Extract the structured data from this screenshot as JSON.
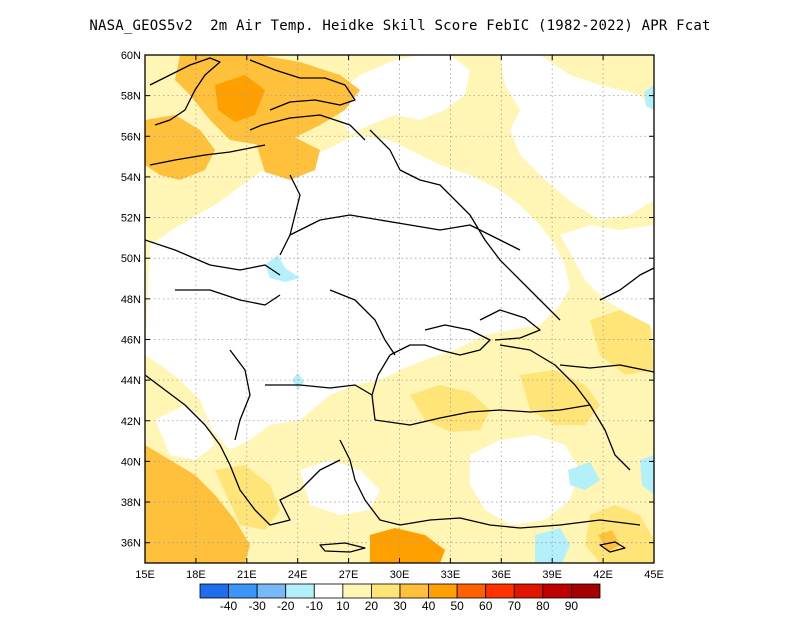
{
  "title": "NASA_GEOS5v2  2m Air Temp. Heidke Skill Score FebIC (1982-2022) APR Fcat",
  "map": {
    "region": "Eastern Europe / Black Sea",
    "lon_range": [
      15,
      45
    ],
    "lat_range": [
      35,
      60
    ],
    "lon_ticks": [
      "15E",
      "18E",
      "21E",
      "24E",
      "27E",
      "30E",
      "33E",
      "36E",
      "39E",
      "42E",
      "45E"
    ],
    "lat_ticks": [
      "36N",
      "38N",
      "40N",
      "42N",
      "44N",
      "46N",
      "48N",
      "50N",
      "52N",
      "54N",
      "56N",
      "58N",
      "60N"
    ],
    "gridlines": true,
    "gridline_style": "dotted"
  },
  "colorbar": {
    "colors": [
      "#1e6eeb",
      "#3c96f5",
      "#78b9fa",
      "#b4f0fa",
      "#ffffff",
      "#fff5b4",
      "#ffe578",
      "#ffc03c",
      "#ffa000",
      "#ff6000",
      "#ff3200",
      "#e11400",
      "#c00000",
      "#a50000"
    ],
    "labels": [
      "-40",
      "-30",
      "-20",
      "-10",
      "10",
      "20",
      "30",
      "40",
      "50",
      "60",
      "70",
      "80",
      "90"
    ]
  },
  "palette": {
    "light_yellow": "#fff5b4",
    "yellow": "#ffe578",
    "light_orange": "#ffc03c",
    "orange": "#ffa000",
    "light_cyan": "#b4f0fa",
    "white": "#ffffff"
  }
}
